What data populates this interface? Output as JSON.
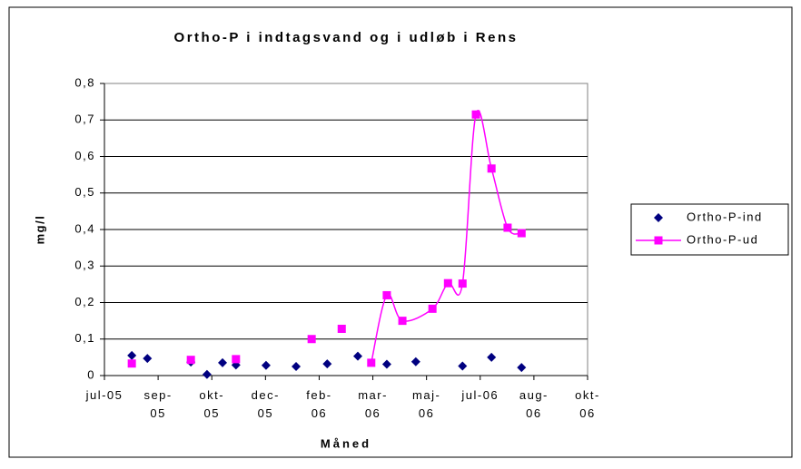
{
  "chart_data": {
    "type": "line",
    "title": "Ortho-P i indtagsvand og i udløb i Rens",
    "x_label": "Måned",
    "y_label": "mg/l",
    "xlim": [
      0,
      9
    ],
    "xticks": [
      {
        "value": 0,
        "label": "jul-05"
      },
      {
        "value": 1,
        "label": "sep-05"
      },
      {
        "value": 2,
        "label": "okt-05"
      },
      {
        "value": 3,
        "label": "dec-05"
      },
      {
        "value": 4,
        "label": "feb-06"
      },
      {
        "value": 5,
        "label": "mar-06"
      },
      {
        "value": 6,
        "label": "maj-06"
      },
      {
        "value": 7,
        "label": "jul-06"
      },
      {
        "value": 8,
        "label": "aug-06"
      },
      {
        "value": 9,
        "label": "okt-06"
      }
    ],
    "ylim": [
      0,
      0.8
    ],
    "yticks": [
      {
        "value": 0,
        "label": "0"
      },
      {
        "value": 0.1,
        "label": "0,1"
      },
      {
        "value": 0.2,
        "label": "0,2"
      },
      {
        "value": 0.3,
        "label": "0,3"
      },
      {
        "value": 0.4,
        "label": "0,4"
      },
      {
        "value": 0.5,
        "label": "0,5"
      },
      {
        "value": 0.6,
        "label": "0,6"
      },
      {
        "value": 0.7,
        "label": "0,7"
      },
      {
        "value": 0.8,
        "label": "0,8"
      }
    ],
    "grid": true,
    "legend": "right",
    "series": [
      {
        "name": "Ortho-P-ind",
        "color": "#000080",
        "marker": "diamond",
        "line": false,
        "x": [
          0.51,
          0.8,
          1.61,
          1.91,
          2.2,
          2.45,
          3.01,
          3.57,
          4.15,
          4.72,
          5.26,
          5.8,
          6.67,
          7.21,
          7.77
        ],
        "values": [
          0.055,
          0.047,
          0.037,
          0.003,
          0.035,
          0.029,
          0.028,
          0.025,
          0.032,
          0.053,
          0.031,
          0.038,
          0.026,
          0.05,
          0.022
        ]
      },
      {
        "name": "Ortho-P-ud",
        "color": "#ff00ff",
        "marker": "square",
        "line": true,
        "x": [
          0.51,
          null,
          1.61,
          null,
          2.45,
          null,
          3.86,
          null,
          4.42,
          null,
          4.97,
          5.26,
          5.55,
          6.11,
          6.4,
          6.67,
          6.92,
          7.21,
          7.51,
          7.77
        ],
        "values": [
          0.033,
          null,
          0.043,
          null,
          0.045,
          null,
          0.1,
          null,
          0.128,
          null,
          0.035,
          0.22,
          0.15,
          0.183,
          0.253,
          0.252,
          0.715,
          0.567,
          0.405,
          0.39
        ]
      }
    ]
  }
}
